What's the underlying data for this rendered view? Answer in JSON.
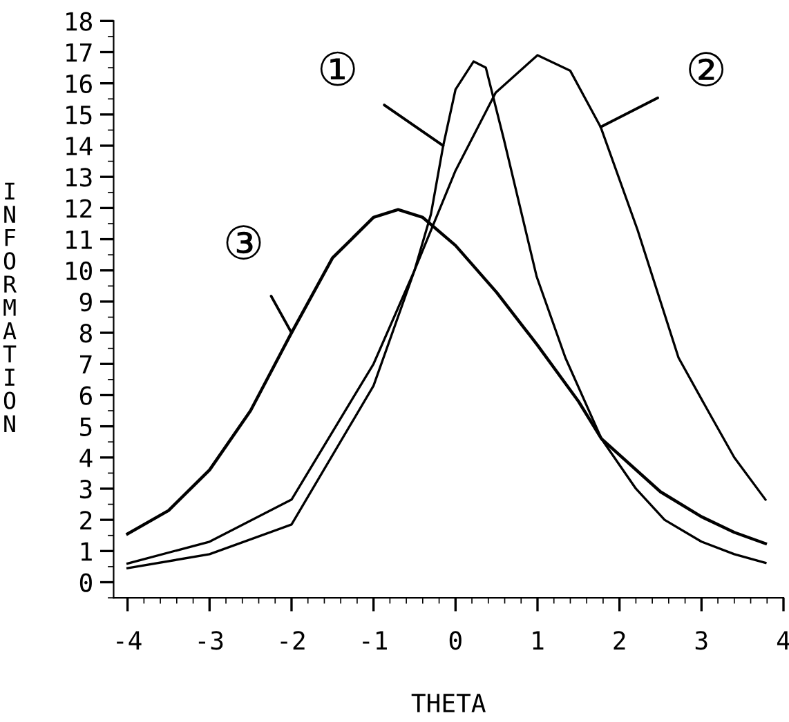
{
  "chart_data": {
    "type": "line",
    "xlabel": "THETA",
    "ylabel": "INFORMATION",
    "xlim": [
      -4.17,
      4.0
    ],
    "ylim": [
      -0.5,
      18
    ],
    "xticks": [
      -4,
      -3,
      -2,
      -1,
      0,
      1,
      2,
      3,
      4
    ],
    "yticks": [
      0,
      1,
      2,
      3,
      4,
      5,
      6,
      7,
      8,
      9,
      10,
      11,
      12,
      13,
      14,
      15,
      16,
      17,
      18
    ],
    "grid": false,
    "legend": false,
    "marker": "none",
    "line_style": "solid",
    "series": [
      {
        "color": "#000000",
        "x": [
          -4,
          -3,
          -2,
          -1,
          -0.5,
          -0.3,
          -0.15,
          0,
          0.22,
          0.37,
          0.59,
          0.99,
          1.34,
          1.78,
          2.2,
          2.55,
          3.0,
          3.4,
          3.78
        ],
        "values": [
          0.45,
          0.9,
          1.85,
          6.3,
          10.0,
          11.8,
          14.0,
          15.8,
          16.7,
          16.5,
          14.2,
          9.8,
          7.2,
          4.6,
          3.0,
          2.0,
          1.3,
          0.9,
          0.62
        ]
      },
      {
        "color": "#000000",
        "x": [
          -4,
          -3,
          -2,
          -1,
          -0.5,
          0,
          0.49,
          1.0,
          1.4,
          1.77,
          2.22,
          2.72,
          3.1,
          3.4,
          3.78
        ],
        "values": [
          0.6,
          1.3,
          2.65,
          7.0,
          10.0,
          13.2,
          15.7,
          16.9,
          16.4,
          14.6,
          11.3,
          7.2,
          5.4,
          4.0,
          2.65
        ]
      },
      {
        "color": "#000000",
        "x": [
          -4,
          -3.5,
          -3,
          -2.5,
          -2,
          -1.5,
          -1,
          -0.7,
          -0.4,
          0,
          0.5,
          1.0,
          1.5,
          1.78,
          2.5,
          3.0,
          3.4,
          3.78
        ],
        "values": [
          1.55,
          2.3,
          3.6,
          5.5,
          8.0,
          10.4,
          11.7,
          11.95,
          11.7,
          10.8,
          9.3,
          7.6,
          5.8,
          4.6,
          2.9,
          2.1,
          1.6,
          1.24
        ]
      }
    ],
    "annotations": [
      {
        "text": "①",
        "x": -0.15,
        "y": 14.0
      },
      {
        "text": "②",
        "x": 1.77,
        "y": 14.6
      },
      {
        "text": "③",
        "x": -2.0,
        "y": 8.0
      }
    ]
  }
}
